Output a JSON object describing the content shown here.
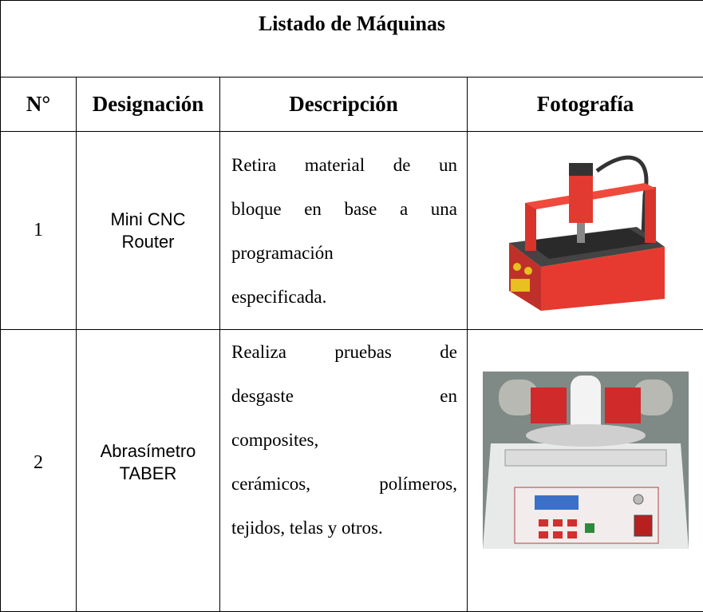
{
  "table": {
    "title": "Listado de Máquinas",
    "headers": [
      "N°",
      "Designación",
      "Descripción",
      "Fotografía"
    ],
    "rows": [
      [
        "1",
        [
          "Mini CNC",
          "Router"
        ],
        [
          "Retira material de un",
          "bloque en base a una",
          "programación",
          "especificada."
        ]
      ],
      [
        "2",
        [
          "Abrasímetro",
          "TABER"
        ],
        [
          "Realiza pruebas de",
          "desgaste en",
          "composites,",
          "cerámicos, polímeros,",
          "tejidos, telas y otros."
        ]
      ]
    ]
  }
}
